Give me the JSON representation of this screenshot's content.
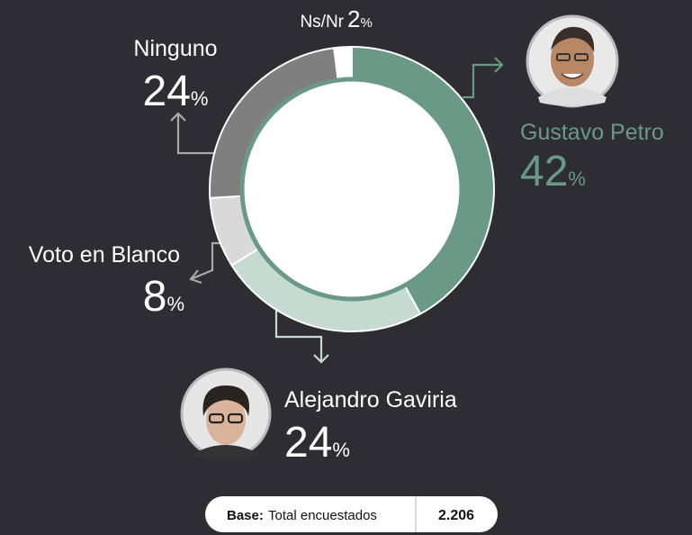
{
  "chart_data": {
    "type": "donut",
    "categories": [
      "Gustavo Petro",
      "Alejandro Gaviria",
      "Voto en Blanco",
      "Ninguno",
      "Ns/Nr"
    ],
    "values": [
      42,
      24,
      8,
      24,
      2
    ],
    "value_labels": [
      "42%",
      "24%",
      "8%",
      "24%",
      "2%"
    ],
    "colors": [
      "#6a9a85",
      "#c5dbd2",
      "#d9d9d9",
      "#7f7f7f",
      "#ffffff"
    ]
  },
  "footer": {
    "label": "Base:",
    "text": "Total encuestados",
    "value": "2.206"
  }
}
